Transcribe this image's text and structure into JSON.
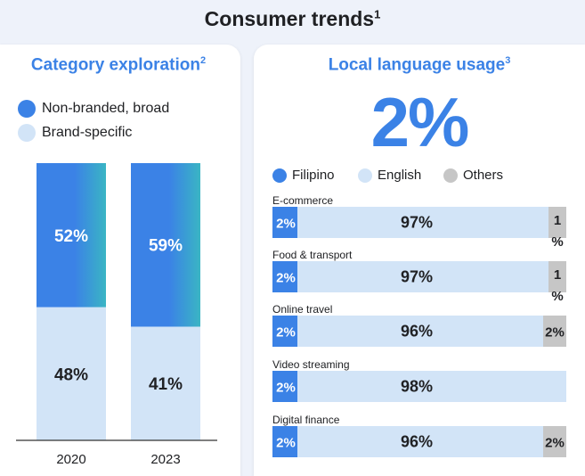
{
  "header": {
    "title": "Consumer trends",
    "title_sup": "1"
  },
  "colors": {
    "blue": "#3b82e6",
    "light_blue": "#d2e4f7",
    "teal": "#3ab5c4",
    "grey": "#c6c6c6",
    "text": "#202124"
  },
  "left_panel": {
    "title": "Category exploration",
    "title_sup": "2",
    "legend": [
      {
        "label": "Non-branded, broad",
        "color": "#3b82e6"
      },
      {
        "label": "Brand-specific",
        "color": "#d2e4f7"
      }
    ]
  },
  "right_panel": {
    "title": "Local language usage",
    "title_sup": "3",
    "big_stat": "2%",
    "legend": [
      {
        "label": "Filipino",
        "color": "#3b82e6"
      },
      {
        "label": "English",
        "color": "#d2e4f7"
      },
      {
        "label": "Others",
        "color": "#c6c6c6"
      }
    ]
  },
  "chart_data": [
    {
      "type": "bar",
      "stacked": true,
      "title": "Category exploration",
      "categories": [
        "2020",
        "2023"
      ],
      "series": [
        {
          "name": "Non-branded, broad",
          "values": [
            52,
            59
          ],
          "labels": [
            "52%",
            "59%"
          ]
        },
        {
          "name": "Brand-specific",
          "values": [
            48,
            41
          ],
          "labels": [
            "48%",
            "41%"
          ]
        }
      ],
      "ylim": [
        0,
        100
      ]
    },
    {
      "type": "bar",
      "orientation": "horizontal",
      "stacked": true,
      "title": "Local language usage",
      "categories": [
        "E-commerce",
        "Food & transport",
        "Online travel",
        "Video streaming",
        "Digital finance"
      ],
      "series": [
        {
          "name": "Filipino",
          "values": [
            2,
            2,
            2,
            2,
            2
          ],
          "labels": [
            "2%",
            "2%",
            "2%",
            "2%",
            "2%"
          ]
        },
        {
          "name": "English",
          "values": [
            97,
            97,
            96,
            98,
            96
          ],
          "labels": [
            "97%",
            "97%",
            "96%",
            "98%",
            "96%"
          ]
        },
        {
          "name": "Others",
          "values": [
            1,
            1,
            2,
            0,
            2
          ],
          "labels": [
            "1\n%",
            "1\n%",
            "2%",
            "",
            "2%"
          ]
        }
      ],
      "xlim": [
        0,
        100
      ]
    }
  ]
}
